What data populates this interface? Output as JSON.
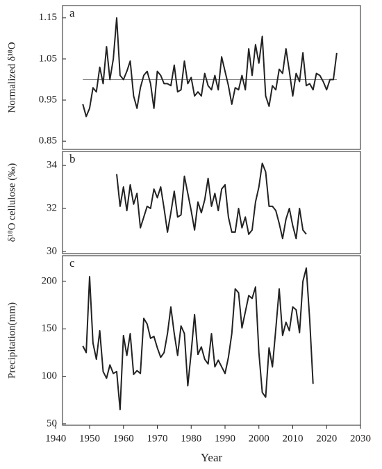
{
  "chart_data": [
    {
      "type": "line",
      "panel_label": "a",
      "ylabel": "Normalized δ¹⁸O",
      "color": "#222222",
      "reference_line": 1.0,
      "x": [
        1948,
        1949,
        1950,
        1951,
        1952,
        1953,
        1954,
        1955,
        1956,
        1957,
        1958,
        1959,
        1960,
        1961,
        1962,
        1963,
        1964,
        1965,
        1966,
        1967,
        1968,
        1969,
        1970,
        1971,
        1972,
        1973,
        1974,
        1975,
        1976,
        1977,
        1978,
        1979,
        1980,
        1981,
        1982,
        1983,
        1984,
        1985,
        1986,
        1987,
        1988,
        1989,
        1990,
        1991,
        1992,
        1993,
        1994,
        1995,
        1996,
        1997,
        1998,
        1999,
        2000,
        2001,
        2002,
        2003,
        2004,
        2005,
        2006,
        2007,
        2008,
        2009,
        2010,
        2011,
        2012,
        2013,
        2014,
        2015,
        2016,
        2017,
        2018,
        2019,
        2020,
        2021,
        2022,
        2023
      ],
      "values": [
        0.94,
        0.91,
        0.93,
        0.98,
        0.97,
        1.03,
        0.99,
        1.08,
        1.0,
        1.05,
        1.15,
        1.01,
        1.0,
        1.02,
        1.045,
        0.96,
        0.93,
        0.98,
        1.01,
        1.02,
        0.99,
        0.93,
        1.02,
        1.01,
        0.99,
        0.99,
        0.985,
        1.035,
        0.97,
        0.975,
        1.045,
        0.99,
        1.005,
        0.96,
        0.97,
        0.96,
        1.015,
        0.985,
        0.975,
        1.01,
        0.975,
        1.055,
        1.02,
        0.985,
        0.94,
        0.98,
        0.975,
        1.01,
        0.975,
        1.075,
        1.01,
        1.085,
        1.04,
        1.105,
        0.96,
        0.935,
        0.985,
        0.975,
        1.025,
        1.015,
        1.075,
        1.02,
        0.96,
        1.015,
        0.995,
        1.065,
        0.985,
        0.99,
        0.975,
        1.015,
        1.01,
        0.995,
        0.975,
        1.0,
        1.0,
        1.065
      ],
      "xlim": [
        1942,
        2030
      ],
      "ylim": [
        0.83,
        1.18
      ],
      "yticks": [
        0.85,
        0.95,
        1.05,
        1.15
      ]
    },
    {
      "type": "line",
      "panel_label": "b",
      "ylabel": "δ¹⁸O cellulose (‰)",
      "color": "#222222",
      "x": [
        1958,
        1959,
        1960,
        1961,
        1962,
        1963,
        1964,
        1965,
        1966,
        1967,
        1968,
        1969,
        1970,
        1971,
        1972,
        1973,
        1974,
        1975,
        1976,
        1977,
        1978,
        1979,
        1980,
        1981,
        1982,
        1983,
        1984,
        1985,
        1986,
        1987,
        1988,
        1989,
        1990,
        1991,
        1992,
        1993,
        1994,
        1995,
        1996,
        1997,
        1998,
        1999,
        2000,
        2001,
        2002,
        2003,
        2004,
        2005,
        2006,
        2007,
        2008,
        2009,
        2010,
        2011,
        2012,
        2013,
        2014
      ],
      "values": [
        33.6,
        32.1,
        33.0,
        31.9,
        33.1,
        32.2,
        32.7,
        31.1,
        31.6,
        32.1,
        32.0,
        32.9,
        32.5,
        33.0,
        32.0,
        30.9,
        31.8,
        32.8,
        31.6,
        31.7,
        33.5,
        32.7,
        31.9,
        31.0,
        32.3,
        31.8,
        32.4,
        33.4,
        32.1,
        32.7,
        31.9,
        32.9,
        33.1,
        31.6,
        30.9,
        30.9,
        32.0,
        31.1,
        31.6,
        30.8,
        31.0,
        32.3,
        33.0,
        34.1,
        33.7,
        32.1,
        32.1,
        31.9,
        31.3,
        30.6,
        31.5,
        32.0,
        31.2,
        30.6,
        32.0,
        31.0,
        30.8
      ],
      "xlim": [
        1942,
        2030
      ],
      "ylim": [
        29.9,
        34.65
      ],
      "yticks": [
        30,
        32,
        34
      ]
    },
    {
      "type": "line",
      "panel_label": "c",
      "ylabel": "Precipitation(mm)",
      "xlabel": "Year",
      "color": "#222222",
      "x": [
        1948,
        1949,
        1950,
        1951,
        1952,
        1953,
        1954,
        1955,
        1956,
        1957,
        1958,
        1959,
        1960,
        1961,
        1962,
        1963,
        1964,
        1965,
        1966,
        1967,
        1968,
        1969,
        1970,
        1971,
        1972,
        1973,
        1974,
        1975,
        1976,
        1977,
        1978,
        1979,
        1980,
        1981,
        1982,
        1983,
        1984,
        1985,
        1986,
        1987,
        1988,
        1989,
        1990,
        1991,
        1992,
        1993,
        1994,
        1995,
        1996,
        1997,
        1998,
        1999,
        2000,
        2001,
        2002,
        2003,
        2004,
        2005,
        2006,
        2007,
        2008,
        2009,
        2010,
        2011,
        2012,
        2013,
        2014,
        2015,
        2016
      ],
      "values": [
        132,
        125,
        205,
        135,
        118,
        148,
        105,
        98,
        112,
        103,
        105,
        65,
        143,
        122,
        145,
        102,
        106,
        103,
        161,
        155,
        140,
        142,
        130,
        120,
        125,
        145,
        173,
        145,
        122,
        153,
        145,
        90,
        125,
        165,
        123,
        131,
        118,
        113,
        145,
        110,
        117,
        110,
        103,
        120,
        145,
        192,
        188,
        151,
        168,
        185,
        182,
        194,
        125,
        83,
        78,
        130,
        110,
        150,
        192,
        143,
        157,
        148,
        173,
        170,
        146,
        200,
        214,
        160,
        92
      ],
      "xlim": [
        1942,
        2030
      ],
      "ylim": [
        48.5,
        227
      ],
      "yticks": [
        50,
        100,
        150,
        200
      ],
      "xticks": [
        1940,
        1950,
        1960,
        1970,
        1980,
        1990,
        2000,
        2010,
        2020,
        2030
      ]
    }
  ]
}
